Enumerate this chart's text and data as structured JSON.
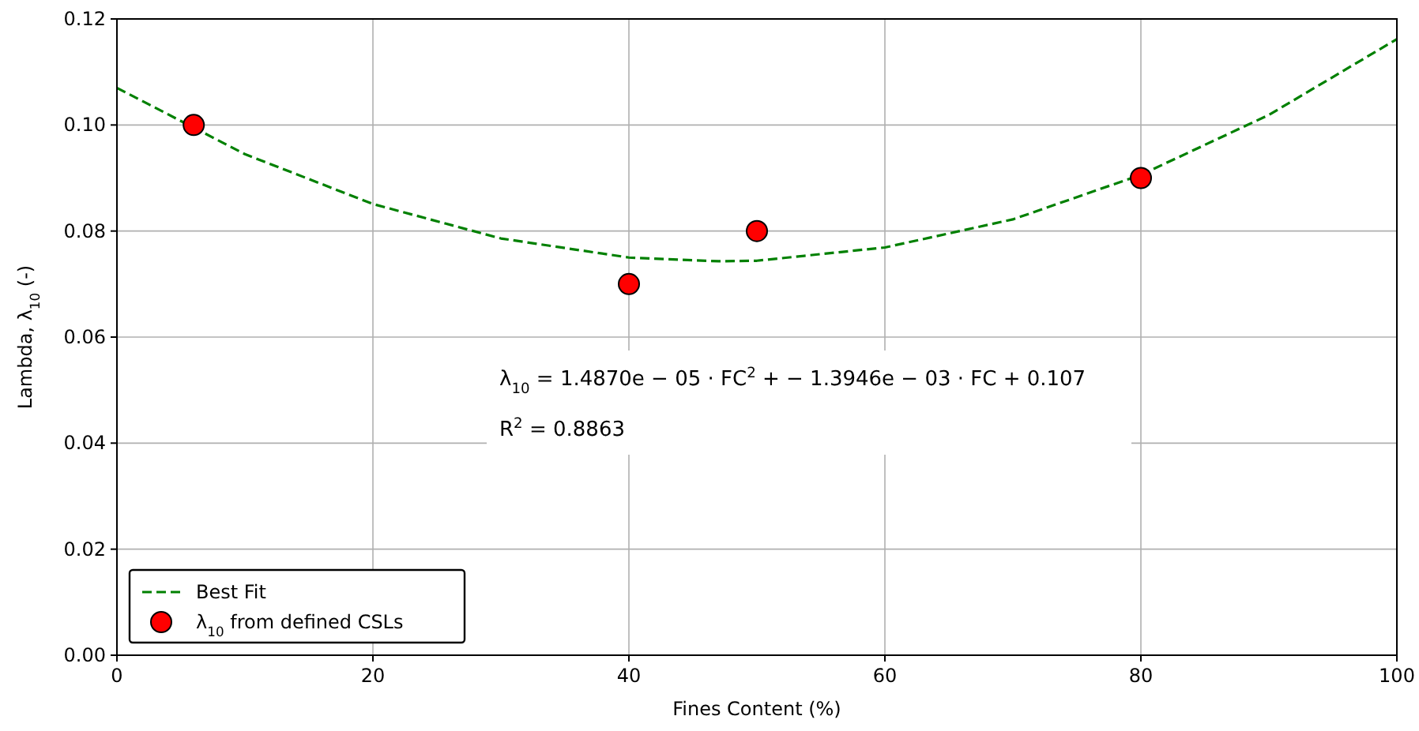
{
  "chart_data": {
    "type": "scatter",
    "xlabel": "Fines Content (%)",
    "ylabel": "Lambda, λ$_{10}$ (-)",
    "xlim": [
      0,
      100
    ],
    "xticks": [
      0,
      20,
      40,
      60,
      80,
      100
    ],
    "ylim": [
      0,
      0.12
    ],
    "yticks": [
      {
        "value": 0,
        "label": "0.00"
      },
      {
        "value": 0.02,
        "label": "0.02"
      },
      {
        "value": 0.04,
        "label": "0.04"
      },
      {
        "value": 0.06,
        "label": "0.06"
      },
      {
        "value": 0.08,
        "label": "0.08"
      },
      {
        "value": 0.1,
        "label": "0.10"
      },
      {
        "value": 0.12,
        "label": "0.12"
      }
    ],
    "grid": true,
    "legend": "bottom left",
    "series": [
      {
        "name": "Best Fit",
        "type": "line",
        "color": "#008000",
        "line_style": "dashed",
        "marker": "none",
        "x": [
          0,
          10,
          20,
          30,
          40,
          47,
          50,
          60,
          70,
          80,
          90,
          100
        ],
        "values": [
          0.107,
          0.0945,
          0.0851,
          0.0786,
          0.075,
          0.0743,
          0.0744,
          0.0769,
          0.0822,
          0.0906,
          0.1019,
          0.1162
        ]
      },
      {
        "name": "λ$_{10}$ from defined CSLs",
        "color": "#ff0000",
        "marker": "circle",
        "x": [
          6,
          40,
          50,
          80
        ],
        "values": [
          0.1,
          0.07,
          0.08,
          0.09
        ]
      }
    ],
    "annotations": [
      "λ$_{10}$ = 1.4870e − 05 · FC$^{2}$ + − 1.3946e − 03 · FC + 0.107",
      "R$^{2}$ = 0.8863"
    ]
  }
}
